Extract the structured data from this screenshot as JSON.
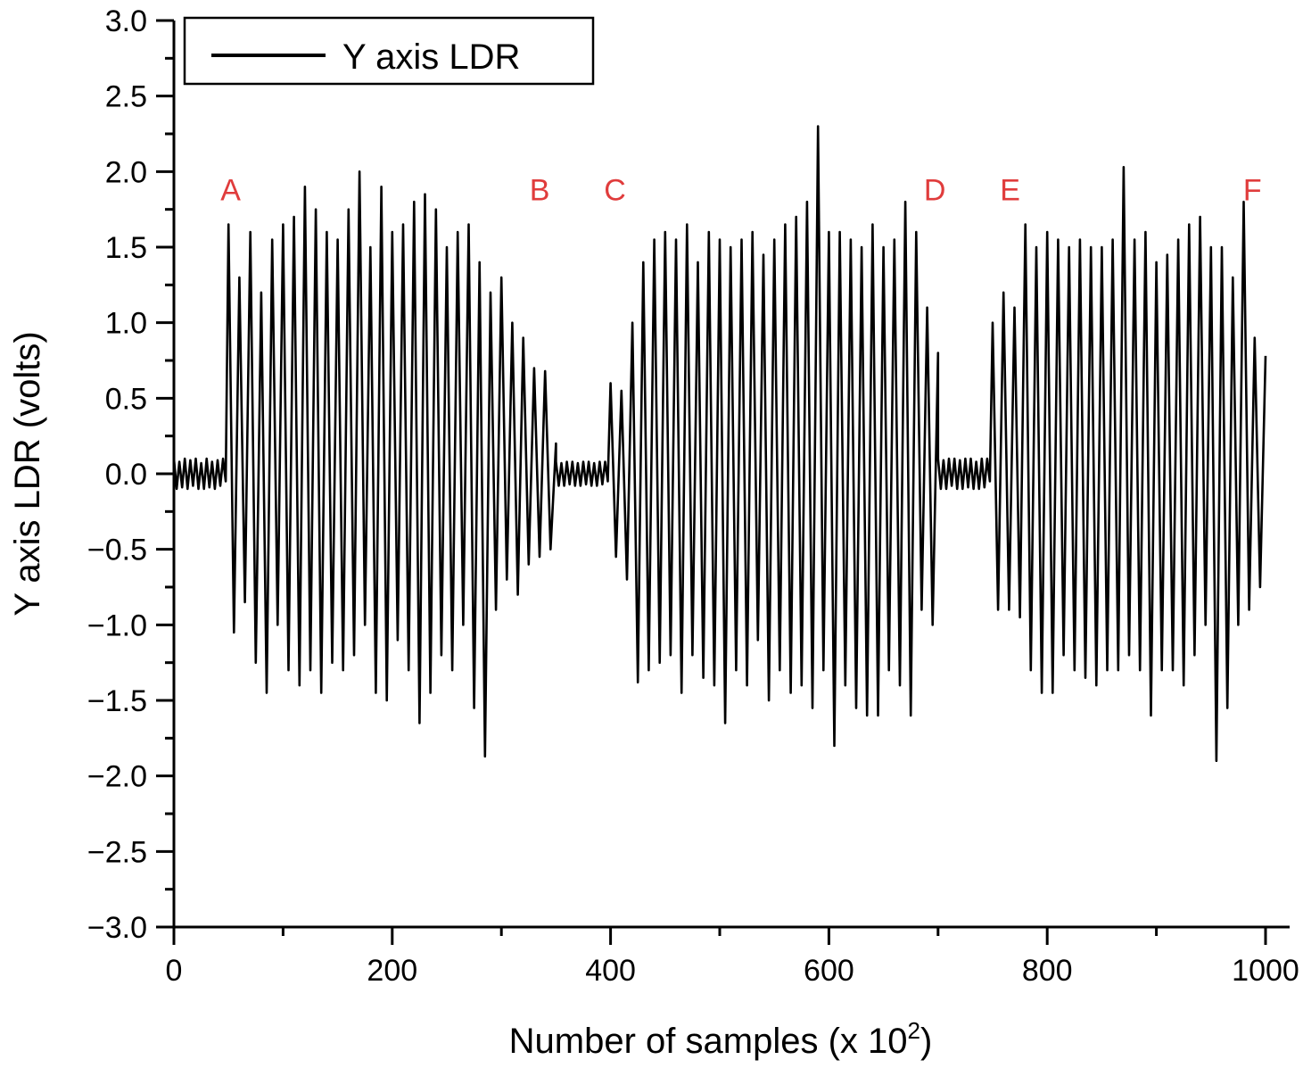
{
  "chart_data": {
    "type": "line",
    "xlabel": "Number of samples (x 10",
    "xlabel_sup": "2",
    "xlabel_end": ")",
    "ylabel": "Y axis LDR (volts)",
    "xlim": [
      0,
      1000
    ],
    "ylim": [
      -3.0,
      3.0
    ],
    "x_ticks": [
      "0",
      "200",
      "400",
      "600",
      "800",
      "1000"
    ],
    "x_tick_values": [
      0,
      200,
      400,
      600,
      800,
      1000
    ],
    "y_ticks": [
      "3.0",
      "2.5",
      "2.0",
      "1.5",
      "1.0",
      "0.5",
      "0.0",
      "−0.5",
      "−1.0",
      "−1.5",
      "−2.0",
      "−2.5",
      "−3.0"
    ],
    "y_tick_values": [
      3.0,
      2.5,
      2.0,
      1.5,
      1.0,
      0.5,
      0.0,
      -0.5,
      -1.0,
      -1.5,
      -2.0,
      -2.5,
      -3.0
    ],
    "grid": false,
    "legend": {
      "placement": "top-left",
      "entries": [
        "Y axis LDR"
      ]
    },
    "line_color": "#000000",
    "annotation_color": "#e03c3c",
    "annotations": [
      {
        "text": "A",
        "x": 52,
        "y": 1.88
      },
      {
        "text": "B",
        "x": 335,
        "y": 1.88
      },
      {
        "text": "C",
        "x": 404,
        "y": 1.88
      },
      {
        "text": "D",
        "x": 697,
        "y": 1.88
      },
      {
        "text": "E",
        "x": 766,
        "y": 1.88
      },
      {
        "text": "F",
        "x": 988,
        "y": 1.88
      }
    ],
    "series": [
      {
        "name": "Y axis LDR",
        "segments": [
          {
            "x_start": 0,
            "x_step": 2.5,
            "y": [
              0.1,
              -0.1,
              0.08,
              -0.09,
              0.1,
              -0.1,
              0.09,
              -0.08,
              0.1,
              -0.1,
              0.07,
              -0.1,
              0.1,
              -0.09,
              0.08,
              -0.1,
              0.09,
              -0.08,
              0.1,
              -0.05
            ]
          },
          {
            "x_start": 50,
            "x_step": 5,
            "y": [
              1.65,
              -1.05,
              1.3,
              -0.85,
              1.6,
              -1.25,
              1.2,
              -1.45,
              1.55,
              -1.0,
              1.65,
              -1.3,
              1.7,
              -1.4,
              1.9,
              -1.3,
              1.75,
              -1.45,
              1.6,
              -1.25,
              1.55,
              -1.3,
              1.75,
              -1.2,
              2.0,
              -1.0,
              1.5,
              -1.45,
              1.9,
              -1.5,
              1.6,
              -1.1,
              1.65,
              -1.3,
              1.8,
              -1.65,
              1.85,
              -1.45,
              1.75,
              -1.2,
              1.5,
              -1.3,
              1.6,
              -1.0,
              1.65,
              -1.55,
              1.4,
              -1.87,
              1.2,
              -0.9,
              1.3,
              -0.7,
              1.0,
              -0.8,
              0.9,
              -0.6,
              0.7,
              -0.55,
              0.68,
              -0.5,
              0.2
            ]
          },
          {
            "x_start": 350,
            "x_step": 2.5,
            "y": [
              0.08,
              -0.08,
              0.07,
              -0.08,
              0.08,
              -0.07,
              0.08,
              -0.08,
              0.07,
              -0.08,
              0.08,
              -0.07,
              0.08,
              -0.08,
              0.07,
              -0.08,
              0.08,
              -0.07,
              0.08,
              -0.05
            ]
          },
          {
            "x_start": 400,
            "x_step": 5,
            "y": [
              0.6,
              -0.55,
              0.55,
              -0.7,
              1.0,
              -1.38,
              1.4,
              -1.3,
              1.55,
              -1.25,
              1.6,
              -1.2,
              1.55,
              -1.45,
              1.65,
              -1.2,
              1.4,
              -1.35,
              1.6,
              -1.4,
              1.55,
              -1.65,
              1.5,
              -1.3,
              1.55,
              -1.4,
              1.6,
              -1.1,
              1.45,
              -1.5,
              1.55,
              -1.3,
              1.65,
              -1.45,
              1.7,
              -1.4,
              1.8,
              -1.55,
              2.3,
              -1.3,
              1.6,
              -1.8,
              1.6,
              -1.4,
              1.55,
              -1.55,
              1.5,
              -1.6,
              1.65,
              -1.6,
              1.5,
              -1.3,
              1.55,
              -1.4,
              1.8,
              -1.6,
              1.6,
              -0.9,
              1.1,
              -1.0,
              0.8
            ]
          },
          {
            "x_start": 700,
            "x_step": 2.5,
            "y": [
              0.1,
              -0.1,
              0.09,
              -0.1,
              0.1,
              -0.08,
              0.1,
              -0.1,
              0.09,
              -0.1,
              0.1,
              -0.09,
              0.1,
              -0.1,
              0.08,
              -0.1,
              0.1,
              -0.09,
              0.1,
              -0.05
            ]
          },
          {
            "x_start": 750,
            "x_step": 5,
            "y": [
              1.0,
              -0.9,
              1.2,
              -0.9,
              1.1,
              -0.95,
              1.65,
              -1.3,
              1.5,
              -1.45,
              1.6,
              -1.45,
              1.55,
              -1.2,
              1.5,
              -1.3,
              1.55,
              -1.35,
              1.5,
              -1.4,
              1.5,
              -1.3,
              1.55,
              -1.3,
              2.03,
              -1.2,
              1.55,
              -1.3,
              1.6,
              -1.6,
              1.4,
              -1.3,
              1.45,
              -1.3,
              1.55,
              -1.4,
              1.65,
              -1.2,
              1.7,
              -1.0,
              1.5,
              -1.9,
              1.5,
              -1.55,
              1.3,
              -1.0,
              1.8,
              -0.9,
              0.9,
              -0.75,
              0.78
            ]
          }
        ]
      }
    ]
  }
}
